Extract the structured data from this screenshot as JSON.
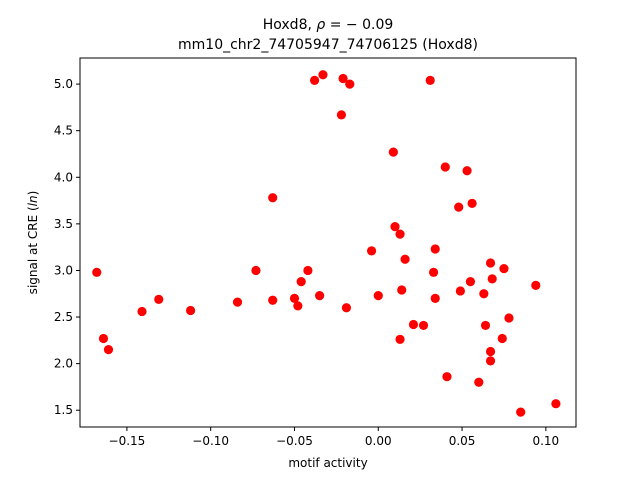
{
  "chart_data": {
    "type": "scatter",
    "title_line1_prefix": "Hoxd8, ",
    "title_line1_symbol": "ρ",
    "title_line1_suffix": " = − 0.09",
    "title_line2": "mm10_chr2_74705947_74706125 (Hoxd8)",
    "xlabel": "motif activity",
    "ylabel_prefix": "signal at CRE (",
    "ylabel_italic": "ln",
    "ylabel_suffix": ")",
    "xlim": [
      -0.178,
      0.118
    ],
    "ylim": [
      1.32,
      5.28
    ],
    "xticks": [
      -0.15,
      -0.1,
      -0.05,
      0.0,
      0.05,
      0.1
    ],
    "xtick_labels": [
      "−0.15",
      "−0.10",
      "−0.05",
      "0.00",
      "0.05",
      "0.10"
    ],
    "yticks": [
      1.5,
      2.0,
      2.5,
      3.0,
      3.5,
      4.0,
      4.5,
      5.0
    ],
    "ytick_labels": [
      "1.5",
      "2.0",
      "2.5",
      "3.0",
      "3.5",
      "4.0",
      "4.5",
      "5.0"
    ],
    "marker_color": "#ff0000",
    "points": [
      {
        "x": -0.168,
        "y": 2.98
      },
      {
        "x": -0.164,
        "y": 2.27
      },
      {
        "x": -0.161,
        "y": 2.15
      },
      {
        "x": -0.141,
        "y": 2.56
      },
      {
        "x": -0.131,
        "y": 2.69
      },
      {
        "x": -0.112,
        "y": 2.57
      },
      {
        "x": -0.084,
        "y": 2.66
      },
      {
        "x": -0.073,
        "y": 3.0
      },
      {
        "x": -0.063,
        "y": 3.78
      },
      {
        "x": -0.063,
        "y": 2.68
      },
      {
        "x": -0.05,
        "y": 2.7
      },
      {
        "x": -0.048,
        "y": 2.62
      },
      {
        "x": -0.046,
        "y": 2.88
      },
      {
        "x": -0.042,
        "y": 3.0
      },
      {
        "x": -0.038,
        "y": 5.04
      },
      {
        "x": -0.035,
        "y": 2.73
      },
      {
        "x": -0.033,
        "y": 5.1
      },
      {
        "x": -0.022,
        "y": 4.67
      },
      {
        "x": -0.021,
        "y": 5.06
      },
      {
        "x": -0.019,
        "y": 2.6
      },
      {
        "x": -0.017,
        "y": 5.0
      },
      {
        "x": -0.004,
        "y": 3.21
      },
      {
        "x": 0.0,
        "y": 2.73
      },
      {
        "x": 0.009,
        "y": 4.27
      },
      {
        "x": 0.01,
        "y": 3.47
      },
      {
        "x": 0.013,
        "y": 3.39
      },
      {
        "x": 0.013,
        "y": 2.26
      },
      {
        "x": 0.014,
        "y": 2.79
      },
      {
        "x": 0.016,
        "y": 3.12
      },
      {
        "x": 0.021,
        "y": 2.42
      },
      {
        "x": 0.027,
        "y": 2.41
      },
      {
        "x": 0.031,
        "y": 5.04
      },
      {
        "x": 0.033,
        "y": 2.98
      },
      {
        "x": 0.034,
        "y": 2.7
      },
      {
        "x": 0.034,
        "y": 3.23
      },
      {
        "x": 0.04,
        "y": 4.11
      },
      {
        "x": 0.041,
        "y": 1.86
      },
      {
        "x": 0.048,
        "y": 3.68
      },
      {
        "x": 0.049,
        "y": 2.78
      },
      {
        "x": 0.053,
        "y": 4.07
      },
      {
        "x": 0.056,
        "y": 3.72
      },
      {
        "x": 0.055,
        "y": 2.88
      },
      {
        "x": 0.06,
        "y": 1.8
      },
      {
        "x": 0.063,
        "y": 2.75
      },
      {
        "x": 0.064,
        "y": 2.41
      },
      {
        "x": 0.067,
        "y": 3.08
      },
      {
        "x": 0.067,
        "y": 2.03
      },
      {
        "x": 0.067,
        "y": 2.13
      },
      {
        "x": 0.068,
        "y": 2.91
      },
      {
        "x": 0.074,
        "y": 2.27
      },
      {
        "x": 0.075,
        "y": 3.02
      },
      {
        "x": 0.078,
        "y": 2.49
      },
      {
        "x": 0.085,
        "y": 1.48
      },
      {
        "x": 0.094,
        "y": 2.84
      },
      {
        "x": 0.106,
        "y": 1.57
      }
    ]
  }
}
